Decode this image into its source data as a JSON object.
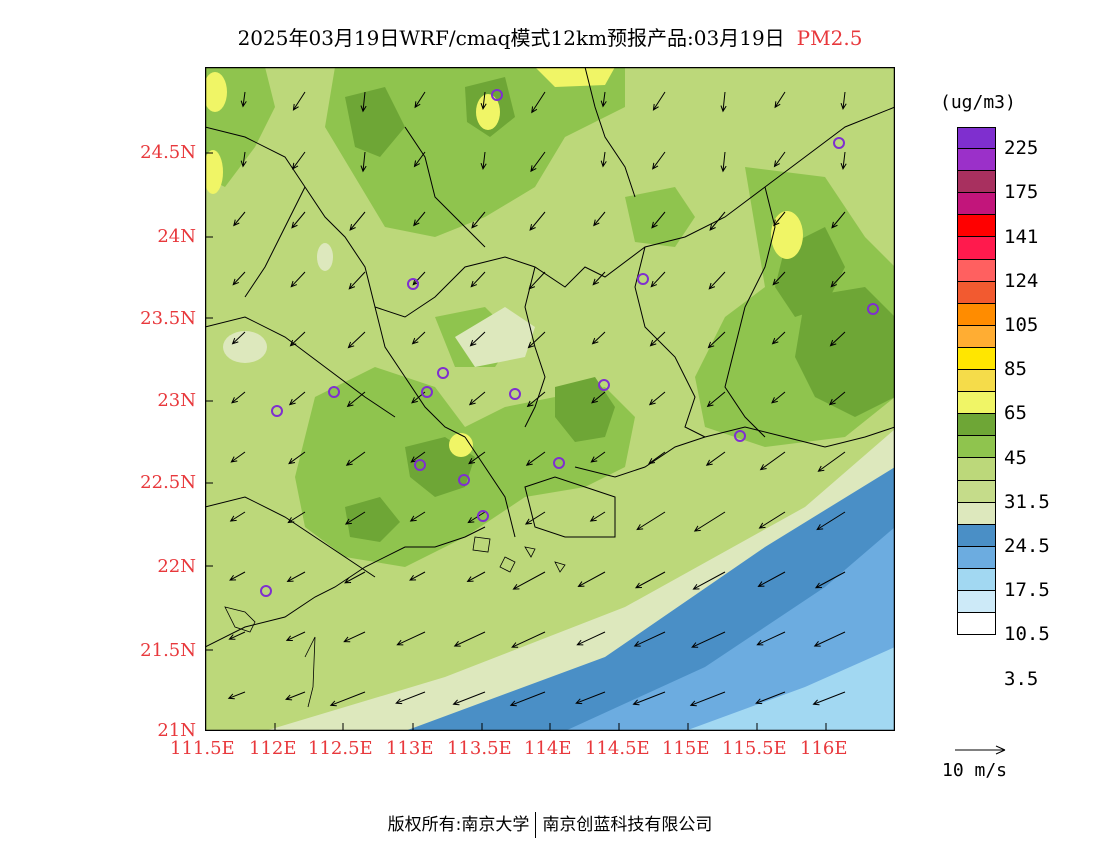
{
  "title": {
    "main": "2025年03月19日WRF/cmaq模式12km预报产品:03月19日",
    "species": "PM2.5"
  },
  "axes": {
    "lat_labels": [
      "24.5N",
      "24N",
      "23.5N",
      "23N",
      "22.5N",
      "22N",
      "21.5N",
      "21N"
    ],
    "lon_labels": [
      "111.5E",
      "112E",
      "112.5E",
      "113E",
      "113.5E",
      "114E",
      "114.5E",
      "115E",
      "115.5E",
      "116E"
    ]
  },
  "legend": {
    "unit": "(ug/m3)",
    "labels": [
      "225",
      "175",
      "141",
      "124",
      "105",
      "85",
      "65",
      "45",
      "31.5",
      "24.5",
      "17.5",
      "10.5",
      "3.5"
    ],
    "colors": [
      "#7f2fcf",
      "#9b30c9",
      "#a8305f",
      "#c2157b",
      "#ff0000",
      "#ff1a4d",
      "#ff6060",
      "#f25a30",
      "#ff8c00",
      "#ffad33",
      "#ffe600",
      "#f5dc4a",
      "#f0f566",
      "#6ea636",
      "#8fc44e",
      "#bcd87a",
      "#c5dc8a",
      "#dde8bd",
      "#4a8fc6",
      "#6cace0",
      "#a2d8f2",
      "#cdeaf8",
      "#ffffff"
    ]
  },
  "wind_key": {
    "label": "10 m/s"
  },
  "footer": {
    "left": "版权所有:南京大学",
    "right": "南京创蓝科技有限公司"
  }
}
